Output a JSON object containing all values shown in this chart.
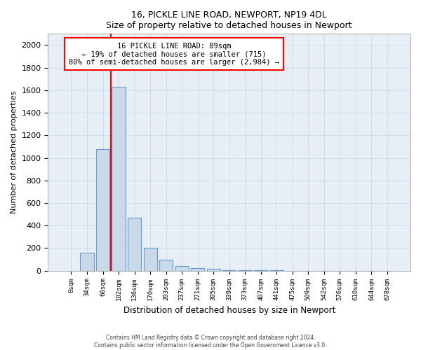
{
  "title1": "16, PICKLE LINE ROAD, NEWPORT, NP19 4DL",
  "title2": "Size of property relative to detached houses in Newport",
  "xlabel": "Distribution of detached houses by size in Newport",
  "ylabel": "Number of detached properties",
  "bar_labels": [
    "0sqm",
    "34sqm",
    "68sqm",
    "102sqm",
    "136sqm",
    "170sqm",
    "203sqm",
    "237sqm",
    "271sqm",
    "305sqm",
    "339sqm",
    "373sqm",
    "407sqm",
    "441sqm",
    "475sqm",
    "509sqm",
    "542sqm",
    "576sqm",
    "610sqm",
    "644sqm",
    "678sqm"
  ],
  "bar_values": [
    0,
    160,
    1080,
    1630,
    470,
    200,
    100,
    40,
    25,
    15,
    5,
    5,
    3,
    2,
    1,
    1,
    0,
    0,
    0,
    0,
    0
  ],
  "bar_color": "#c9d9ea",
  "bar_edge_color": "#6699cc",
  "red_line_x": 2.5,
  "annotation_line1": "16 PICKLE LINE ROAD: 89sqm",
  "annotation_line2": "← 19% of detached houses are smaller (715)",
  "annotation_line3": "80% of semi-detached houses are larger (2,984) →",
  "footer1": "Contains HM Land Registry data © Crown copyright and database right 2024.",
  "footer2": "Contains public sector information licensed under the Open Government Licence v3.0.",
  "ylim": [
    0,
    2100
  ],
  "yticks": [
    0,
    200,
    400,
    600,
    800,
    1000,
    1200,
    1400,
    1600,
    1800,
    2000
  ],
  "bg_color": "#ffffff",
  "grid_color": "#ccddee"
}
